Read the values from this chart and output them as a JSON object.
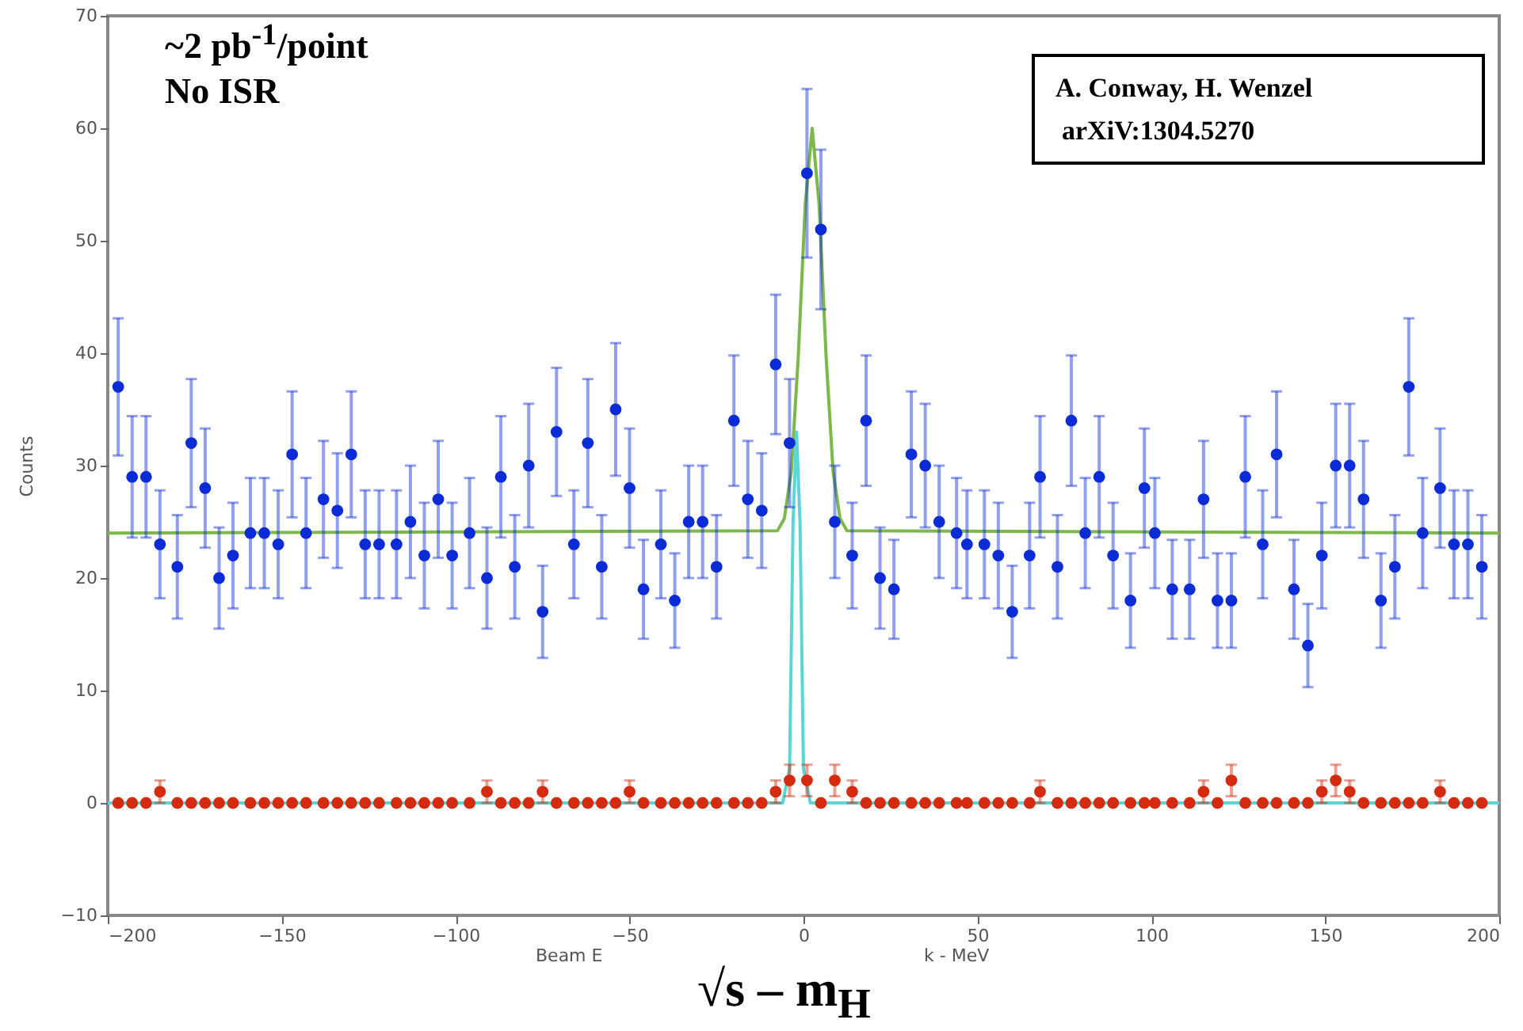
{
  "chart_data": {
    "type": "scatter",
    "ylabel": "Counts",
    "xlabel": "√s – m$_{H}$",
    "annotations": [
      "~2 pb$^{-1}$/point",
      "No ISR",
      "A. Conway, H. Wenzel",
      "arXiV:1304.5270",
      "Beam E",
      "k - MeV"
    ],
    "xlim": [
      -200,
      200
    ],
    "xticks": [
      -200,
      -150,
      -100,
      -50,
      0,
      50,
      100,
      150,
      200
    ],
    "ylim": [
      -10,
      70
    ],
    "yticks": [
      -10,
      0,
      10,
      20,
      30,
      40,
      50,
      60,
      70
    ],
    "x": [
      -197,
      -193,
      -189,
      -185,
      -180,
      -176,
      -172,
      -168,
      -164,
      -159,
      -155,
      -151,
      -147,
      -143,
      -138,
      -134,
      -130,
      -126,
      -122,
      -117,
      -113,
      -109,
      -105,
      -101,
      -96,
      -91,
      -87,
      -83,
      -79,
      -75,
      -71,
      -66,
      -62,
      -58,
      -54,
      -50,
      -46,
      -41,
      -37,
      -33,
      -29,
      -25,
      -20,
      -16,
      -12,
      -8,
      -4,
      1,
      5,
      9,
      14,
      18,
      22,
      26,
      31,
      35,
      39,
      44,
      47,
      52,
      56,
      60,
      65,
      68,
      73,
      77,
      81,
      85,
      89,
      94,
      98,
      101,
      106,
      111,
      115,
      119,
      123,
      127,
      132,
      136,
      141,
      145,
      149,
      153,
      157,
      161,
      166,
      170,
      174,
      178,
      183,
      187,
      191,
      195
    ],
    "series": [
      {
        "marker": "circle",
        "color": "#0b2bd6",
        "values": [
          37,
          29,
          29,
          23,
          21,
          32,
          28,
          20,
          22,
          24,
          24,
          23,
          31,
          24,
          27,
          26,
          31,
          23,
          23,
          23,
          25,
          22,
          27,
          22,
          24,
          20,
          29,
          21,
          30,
          17,
          33,
          23,
          32,
          21,
          35,
          28,
          19,
          23,
          18,
          25,
          25,
          21,
          34,
          27,
          26,
          39,
          32,
          56,
          51,
          25,
          22,
          34,
          20,
          19,
          31,
          30,
          25,
          24,
          23,
          23,
          22,
          17,
          22,
          29,
          21,
          34,
          24,
          29,
          22,
          18,
          28,
          24,
          19,
          19,
          27,
          18,
          18,
          29,
          23,
          31,
          19,
          14,
          22,
          30,
          30,
          27,
          18,
          21,
          37,
          24,
          28,
          23,
          23,
          21
        ],
        "errors": [
          6.1,
          5.4,
          5.4,
          4.8,
          4.6,
          5.7,
          5.3,
          4.5,
          4.7,
          4.9,
          4.9,
          4.8,
          5.6,
          4.9,
          5.2,
          5.1,
          5.6,
          4.8,
          4.8,
          4.8,
          5,
          4.7,
          5.2,
          4.7,
          4.9,
          4.5,
          5.4,
          4.6,
          5.5,
          4.1,
          5.7,
          4.8,
          5.7,
          4.6,
          5.9,
          5.3,
          4.4,
          4.8,
          4.2,
          5,
          5,
          4.6,
          5.8,
          5.2,
          5.1,
          6.2,
          5.7,
          7.5,
          7.1,
          5,
          4.7,
          5.8,
          4.5,
          4.4,
          5.6,
          5.5,
          5,
          4.9,
          4.8,
          4.8,
          4.7,
          4.1,
          4.7,
          5.4,
          4.6,
          5.8,
          4.9,
          5.4,
          4.7,
          4.2,
          5.3,
          4.9,
          4.4,
          4.4,
          5.2,
          4.2,
          4.2,
          5.4,
          4.8,
          5.6,
          4.4,
          3.7,
          4.7,
          5.5,
          5.5,
          5.2,
          4.2,
          4.6,
          6.1,
          4.9,
          5.3,
          4.8,
          4.8,
          4.6
        ]
      },
      {
        "marker": "circle",
        "color": "#d42a10",
        "values": [
          0,
          0,
          0,
          1,
          0,
          0,
          0,
          0,
          0,
          0,
          0,
          0,
          0,
          0,
          0,
          0,
          0,
          0,
          0,
          0,
          0,
          0,
          0,
          0,
          0,
          1,
          0,
          0,
          0,
          1,
          0,
          0,
          0,
          0,
          0,
          1,
          0,
          0,
          0,
          0,
          0,
          0,
          0,
          0,
          0,
          1,
          2,
          2,
          0,
          2,
          1,
          0,
          0,
          0,
          0,
          0,
          0,
          0,
          0,
          0,
          0,
          0,
          0,
          1,
          0,
          0,
          0,
          0,
          0,
          0,
          0,
          0,
          0,
          0,
          1,
          0,
          2,
          0,
          0,
          0,
          0,
          0,
          1,
          2,
          1,
          0,
          0,
          0,
          0,
          0,
          1,
          0,
          0,
          0
        ],
        "errors": [
          null,
          null,
          null,
          1,
          null,
          null,
          null,
          null,
          null,
          null,
          null,
          null,
          null,
          null,
          null,
          null,
          null,
          null,
          null,
          null,
          null,
          null,
          null,
          null,
          null,
          1,
          null,
          null,
          null,
          1,
          null,
          null,
          null,
          null,
          null,
          1,
          null,
          null,
          null,
          null,
          null,
          null,
          null,
          null,
          null,
          1,
          1.4,
          1.4,
          null,
          1.4,
          1,
          null,
          null,
          null,
          null,
          null,
          null,
          null,
          null,
          null,
          null,
          null,
          null,
          1,
          null,
          null,
          null,
          null,
          null,
          null,
          null,
          null,
          null,
          null,
          1,
          null,
          1.4,
          null,
          null,
          null,
          null,
          null,
          1,
          1.4,
          1,
          null,
          null,
          null,
          null,
          null,
          1,
          null,
          null,
          null
        ]
      },
      {
        "type": "line",
        "marker": "none",
        "color": "#7cb84a",
        "x": [
          -200,
          -7.5,
          -5.5,
          -3.5,
          -1.5,
          0.5,
          2.5,
          4.5,
          6.5,
          8.5,
          10.5,
          12.5,
          200
        ],
        "values": [
          24,
          24.2,
          25.3,
          29.5,
          39.7,
          53.2,
          60,
          53.2,
          39.7,
          29.5,
          25.3,
          24.2,
          24
        ]
      },
      {
        "type": "line",
        "marker": "none",
        "color": "#5ad6d6",
        "x": [
          -200,
          -6,
          -4,
          -3,
          -2,
          -1,
          0,
          2,
          200
        ],
        "values": [
          0,
          0,
          3,
          25,
          33,
          25,
          3,
          0,
          0
        ]
      }
    ]
  }
}
